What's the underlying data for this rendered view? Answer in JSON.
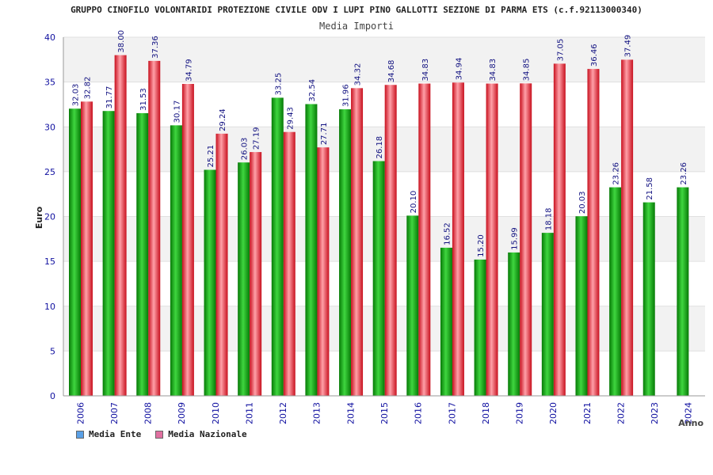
{
  "chart_data": {
    "type": "bar",
    "title": "GRUPPO CINOFILO VOLONTARIDI PROTEZIONE CIVILE ODV I LUPI PINO GALLOTTI SEZIONE DI PARMA ETS (c.f.92113000340)",
    "subtitle": "Media Importi",
    "ylabel": "Euro",
    "xlabel": "Anno",
    "ylim": [
      0,
      40
    ],
    "yticks": [
      0,
      5,
      10,
      15,
      20,
      25,
      30,
      35,
      40
    ],
    "categories": [
      "2006",
      "2007",
      "2008",
      "2009",
      "2010",
      "2011",
      "2012",
      "2013",
      "2014",
      "2015",
      "2016",
      "2017",
      "2018",
      "2019",
      "2020",
      "2021",
      "2022",
      "2023",
      "2024"
    ],
    "series": [
      {
        "name": "Media Ente",
        "color": "#0aaa0a",
        "values": [
          32.03,
          31.77,
          31.53,
          30.17,
          25.21,
          26.03,
          33.25,
          32.54,
          31.96,
          26.18,
          20.1,
          16.52,
          15.2,
          15.99,
          18.18,
          20.03,
          23.26,
          21.58,
          23.26
        ],
        "labels": [
          "32.03",
          "31.77",
          "31.53",
          "30.17",
          "25.21",
          "26.03",
          "33.25",
          "32.54",
          "31.96",
          "26.18",
          "20.10",
          "16.52",
          "15.20",
          "15.99",
          "18.18",
          "20.03",
          "23.26",
          "21.58",
          "23.26"
        ]
      },
      {
        "name": "Media Nazionale",
        "color": "#e8283c",
        "values": [
          32.82,
          38.0,
          37.36,
          34.79,
          29.24,
          27.19,
          29.43,
          27.71,
          34.32,
          34.68,
          34.83,
          34.94,
          34.83,
          34.85,
          37.05,
          36.46,
          37.49,
          null,
          null
        ],
        "labels": [
          "32.82",
          "38.00",
          "37.36",
          "34.79",
          "29.24",
          "27.19",
          "29.43",
          "27.71",
          "34.32",
          "34.68",
          "34.83",
          "34.94",
          "34.83",
          "34.85",
          "37.05",
          "36.46",
          "37.49",
          "",
          ""
        ]
      }
    ],
    "legend": [
      {
        "label": "Media Ente",
        "color": "#5aa0e6"
      },
      {
        "label": "Media Nazionale",
        "color": "#e070a0"
      }
    ],
    "grid": true,
    "legend_position": "bottom-left"
  }
}
